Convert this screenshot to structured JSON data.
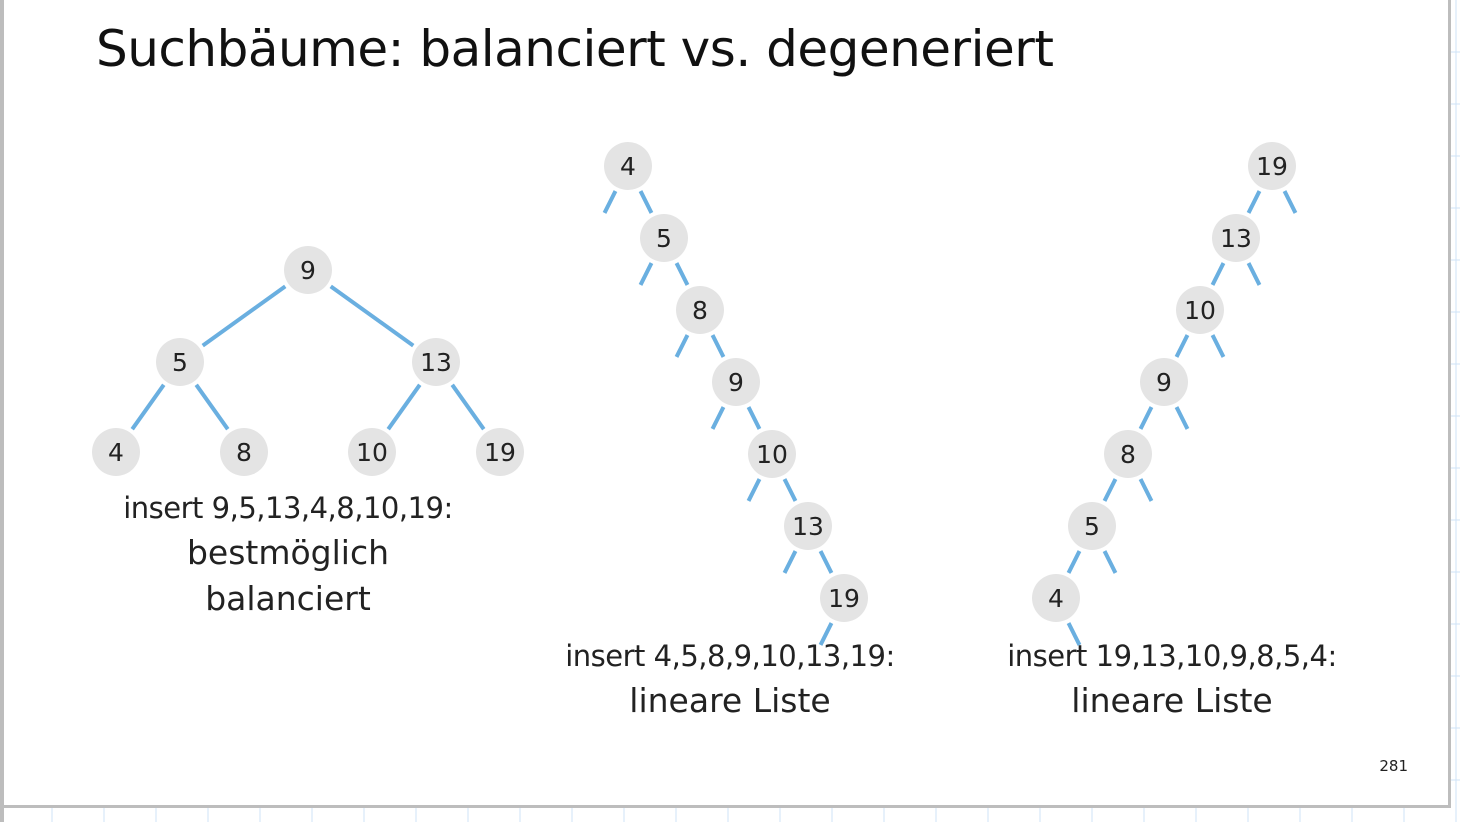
{
  "slide": {
    "title": "Suchbäume: balanciert vs. degeneriert",
    "page_number": "281"
  },
  "trees": [
    {
      "id": "balanced",
      "insert_order": [
        9,
        5,
        13,
        4,
        8,
        10,
        19
      ],
      "caption_line1": "insert 9,5,13,4,8,10,19:",
      "caption_line2a": "bestmöglich",
      "caption_line2b": "balanciert"
    },
    {
      "id": "degenerate-ascending",
      "insert_order": [
        4,
        5,
        8,
        9,
        10,
        13,
        19
      ],
      "caption_line1": "insert 4,5,8,9,10,13,19:",
      "caption_line2a": "lineare Liste"
    },
    {
      "id": "degenerate-descending",
      "insert_order": [
        19,
        13,
        10,
        9,
        8,
        5,
        4
      ],
      "caption_line1": "insert 19,13,10,9,8,5,4:",
      "caption_line2a": "lineare Liste"
    }
  ],
  "colors": {
    "edge": "#6aafe0",
    "node_fill": "#e4e4e4",
    "text": "#222222",
    "grid": "#cfe3f7"
  }
}
